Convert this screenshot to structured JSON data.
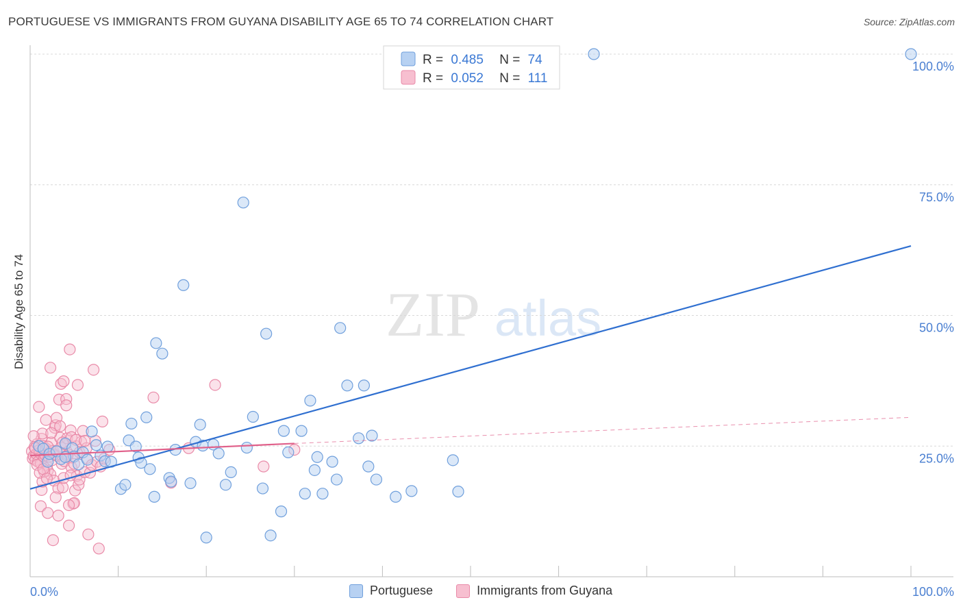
{
  "title": "PORTUGUESE VS IMMIGRANTS FROM GUYANA DISABILITY AGE 65 TO 74 CORRELATION CHART",
  "source": "Source: ZipAtlas.com",
  "watermark": {
    "zip": "ZIP",
    "atlas": "atlas"
  },
  "colors": {
    "blue_fill": "#b7d1f2",
    "blue_stroke": "#6f9fdc",
    "blue_line": "#2f6fd0",
    "pink_fill": "#f7bfd0",
    "pink_stroke": "#e98aa8",
    "pink_line": "#e0608a",
    "axis_text": "#4a7fd1",
    "grid": "#d8d8d8"
  },
  "chart_data": {
    "type": "scatter",
    "title": "PORTUGUESE VS IMMIGRANTS FROM GUYANA DISABILITY AGE 65 TO 74 CORRELATION CHART",
    "xlabel": "",
    "ylabel": "Disability Age 65 to 74",
    "xlim": [
      0,
      100
    ],
    "ylim": [
      0,
      100
    ],
    "x_tick_labels": [
      "0.0%",
      "100.0%"
    ],
    "y_tick_labels": [
      "25.0%",
      "50.0%",
      "75.0%",
      "100.0%"
    ],
    "y_ticks": [
      25,
      50,
      75,
      100
    ],
    "legend": [
      {
        "name": "Portuguese",
        "r_label": "R =",
        "r_value": "0.485",
        "n_label": "N =",
        "n_value": "74"
      },
      {
        "name": "Immigrants from Guyana",
        "r_label": "R =",
        "r_value": "0.052",
        "n_label": "N =",
        "n_value": "111"
      }
    ],
    "series": [
      {
        "name": "Portuguese",
        "trend": {
          "x0": 0,
          "y0": 16.8,
          "x1": 100,
          "y1": 63.3
        },
        "points": [
          [
            1.0,
            25.0
          ],
          [
            1.5,
            24.5
          ],
          [
            2.0,
            22.0
          ],
          [
            2.2,
            23.5
          ],
          [
            3.0,
            24.0
          ],
          [
            3.5,
            22.5
          ],
          [
            4.0,
            25.5
          ],
          [
            4.8,
            24.6
          ],
          [
            5.0,
            23.0
          ],
          [
            5.5,
            21.5
          ],
          [
            6.0,
            23.8
          ],
          [
            6.5,
            22.4
          ],
          [
            7.0,
            27.8
          ],
          [
            7.5,
            25.2
          ],
          [
            8.0,
            23.2
          ],
          [
            8.5,
            22.1
          ],
          [
            8.8,
            24.9
          ],
          [
            9.2,
            22.0
          ],
          [
            10.3,
            16.8
          ],
          [
            10.8,
            17.6
          ],
          [
            11.2,
            26.1
          ],
          [
            11.5,
            29.3
          ],
          [
            12.3,
            22.8
          ],
          [
            12.6,
            21.8
          ],
          [
            13.2,
            30.5
          ],
          [
            13.6,
            20.6
          ],
          [
            14.1,
            15.3
          ],
          [
            14.3,
            44.7
          ],
          [
            15.0,
            42.7
          ],
          [
            15.8,
            18.9
          ],
          [
            16.0,
            18.2
          ],
          [
            16.5,
            24.3
          ],
          [
            17.4,
            55.8
          ],
          [
            18.2,
            17.9
          ],
          [
            18.8,
            25.8
          ],
          [
            19.3,
            29.1
          ],
          [
            19.6,
            25.1
          ],
          [
            20.0,
            7.5
          ],
          [
            20.8,
            25.3
          ],
          [
            21.4,
            23.6
          ],
          [
            22.2,
            17.6
          ],
          [
            22.8,
            20.0
          ],
          [
            24.2,
            71.6
          ],
          [
            24.6,
            24.7
          ],
          [
            25.3,
            30.6
          ],
          [
            26.4,
            16.9
          ],
          [
            26.8,
            46.5
          ],
          [
            27.3,
            7.9
          ],
          [
            28.5,
            12.5
          ],
          [
            28.8,
            27.9
          ],
          [
            29.3,
            23.8
          ],
          [
            30.8,
            27.9
          ],
          [
            31.2,
            15.9
          ],
          [
            31.8,
            33.7
          ],
          [
            32.3,
            20.4
          ],
          [
            32.6,
            22.9
          ],
          [
            33.2,
            15.9
          ],
          [
            34.3,
            22.0
          ],
          [
            34.8,
            18.6
          ],
          [
            35.2,
            47.6
          ],
          [
            36.0,
            36.6
          ],
          [
            37.3,
            26.5
          ],
          [
            37.9,
            36.6
          ],
          [
            38.4,
            21.1
          ],
          [
            38.8,
            27.0
          ],
          [
            39.3,
            18.6
          ],
          [
            41.5,
            15.3
          ],
          [
            43.3,
            16.4
          ],
          [
            48.0,
            22.3
          ],
          [
            48.6,
            16.3
          ],
          [
            64.0,
            100.0
          ],
          [
            100.0,
            100.0
          ],
          [
            12.0,
            24.9
          ],
          [
            4.0,
            22.9
          ]
        ]
      },
      {
        "name": "Immigrants from Guyana",
        "trend_solid": {
          "x0": 0,
          "y0": 23.2,
          "x1": 30,
          "y1": 25.5
        },
        "trend_dashed": {
          "x0": 30,
          "y0": 25.5,
          "x1": 100,
          "y1": 30.5
        },
        "points": [
          [
            0.2,
            24.0
          ],
          [
            0.3,
            22.6
          ],
          [
            0.4,
            23.1
          ],
          [
            0.5,
            24.8
          ],
          [
            0.6,
            22.3
          ],
          [
            0.7,
            23.5
          ],
          [
            0.8,
            25.4
          ],
          [
            0.9,
            22.0
          ],
          [
            1.0,
            24.2
          ],
          [
            1.1,
            23.7
          ],
          [
            1.2,
            21.7
          ],
          [
            1.3,
            26.4
          ],
          [
            1.4,
            27.4
          ],
          [
            1.5,
            25.0
          ],
          [
            1.6,
            22.8
          ],
          [
            1.7,
            23.3
          ],
          [
            1.8,
            24.5
          ],
          [
            1.9,
            21.2
          ],
          [
            2.0,
            20.3
          ],
          [
            2.1,
            22.9
          ],
          [
            2.2,
            23.8
          ],
          [
            2.3,
            19.6
          ],
          [
            2.4,
            25.7
          ],
          [
            2.5,
            22.3
          ],
          [
            2.6,
            24.1
          ],
          [
            2.7,
            18.4
          ],
          [
            2.8,
            28.5
          ],
          [
            2.9,
            29.0
          ],
          [
            3.0,
            30.4
          ],
          [
            3.1,
            23.1
          ],
          [
            3.2,
            16.9
          ],
          [
            3.3,
            33.9
          ],
          [
            3.4,
            26.6
          ],
          [
            3.5,
            24.7
          ],
          [
            3.6,
            21.6
          ],
          [
            3.7,
            17.1
          ],
          [
            3.8,
            18.9
          ],
          [
            3.9,
            22.1
          ],
          [
            4.0,
            25.3
          ],
          [
            4.1,
            34.0
          ],
          [
            4.2,
            26.5
          ],
          [
            4.3,
            23.4
          ],
          [
            4.4,
            9.8
          ],
          [
            4.5,
            43.5
          ],
          [
            4.6,
            28.0
          ],
          [
            4.7,
            20.9
          ],
          [
            4.8,
            22.8
          ],
          [
            4.9,
            14.0
          ],
          [
            5.0,
            14.1
          ],
          [
            5.1,
            16.5
          ],
          [
            5.2,
            25.0
          ],
          [
            5.3,
            19.3
          ],
          [
            5.4,
            36.7
          ],
          [
            5.5,
            17.6
          ],
          [
            5.6,
            18.6
          ],
          [
            5.8,
            25.8
          ],
          [
            6.0,
            27.9
          ],
          [
            6.2,
            20.0
          ],
          [
            6.4,
            22.7
          ],
          [
            6.6,
            8.1
          ],
          [
            6.8,
            19.9
          ],
          [
            7.0,
            21.4
          ],
          [
            7.2,
            39.6
          ],
          [
            7.4,
            26.0
          ],
          [
            7.6,
            22.0
          ],
          [
            7.8,
            5.4
          ],
          [
            8.0,
            21.1
          ],
          [
            8.2,
            29.7
          ],
          [
            8.4,
            22.6
          ],
          [
            1.0,
            32.5
          ],
          [
            1.2,
            13.5
          ],
          [
            1.3,
            16.6
          ],
          [
            1.4,
            18.2
          ],
          [
            1.6,
            20.1
          ],
          [
            1.8,
            30.0
          ],
          [
            2.0,
            12.2
          ],
          [
            2.3,
            40.0
          ],
          [
            2.6,
            7.0
          ],
          [
            2.9,
            15.2
          ],
          [
            3.2,
            11.7
          ],
          [
            3.5,
            36.9
          ],
          [
            3.8,
            37.4
          ],
          [
            4.1,
            32.8
          ],
          [
            4.4,
            13.7
          ],
          [
            4.7,
            26.7
          ],
          [
            5.0,
            21.6
          ],
          [
            0.4,
            26.9
          ],
          [
            0.8,
            21.4
          ],
          [
            1.1,
            19.9
          ],
          [
            1.5,
            20.6
          ],
          [
            1.9,
            18.8
          ],
          [
            2.4,
            27.5
          ],
          [
            2.7,
            23.4
          ],
          [
            3.0,
            24.0
          ],
          [
            3.4,
            28.8
          ],
          [
            3.7,
            25.7
          ],
          [
            4.2,
            23.1
          ],
          [
            4.6,
            19.4
          ],
          [
            5.2,
            26.2
          ],
          [
            5.6,
            23.8
          ],
          [
            6.4,
            24.6
          ],
          [
            14.0,
            34.3
          ],
          [
            16.0,
            18.0
          ],
          [
            18.0,
            24.6
          ],
          [
            21.0,
            36.7
          ],
          [
            26.5,
            21.1
          ],
          [
            30.0,
            24.3
          ],
          [
            9.0,
            24.3
          ],
          [
            6.2,
            26.0
          ],
          [
            2.0,
            24.9
          ],
          [
            0.6,
            24.6
          ]
        ]
      }
    ]
  }
}
